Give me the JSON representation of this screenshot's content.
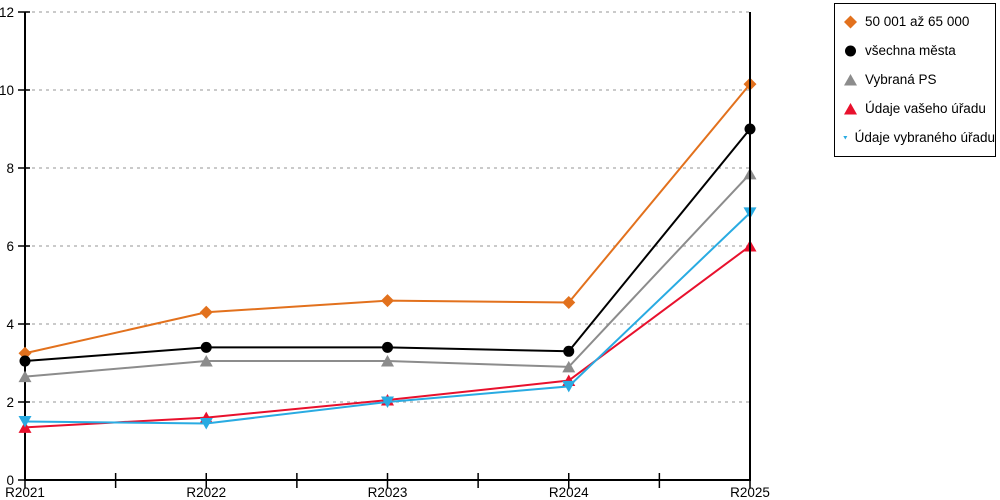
{
  "chart_data": {
    "type": "line",
    "title": "",
    "xlabel": "",
    "ylabel": "",
    "categories": [
      "R2021",
      "R2022",
      "R2023",
      "R2024",
      "R2025"
    ],
    "series": [
      {
        "name": "50 001 až 65 000",
        "marker": "diamond",
        "color": "#E2711D",
        "values": [
          3.25,
          4.3,
          4.6,
          4.55,
          10.15
        ]
      },
      {
        "name": "všechna města",
        "marker": "circle",
        "color": "#000000",
        "values": [
          3.05,
          3.4,
          3.4,
          3.3,
          9.0
        ]
      },
      {
        "name": "Vybraná PS",
        "marker": "triangle-up",
        "color": "#8C8C8C",
        "values": [
          2.65,
          3.05,
          3.05,
          2.9,
          7.85
        ]
      },
      {
        "name": "Údaje vašeho úřadu",
        "marker": "triangle-up",
        "color": "#E8112D",
        "values": [
          1.35,
          1.6,
          2.05,
          2.55,
          6.0
        ]
      },
      {
        "name": "Údaje vybraného úřadu",
        "marker": "triangle-down",
        "color": "#29ABE2",
        "values": [
          1.5,
          1.45,
          2.0,
          2.4,
          6.85
        ]
      }
    ],
    "ylim": [
      0,
      12
    ],
    "ytick_step": 2,
    "ytick_labels": [
      "0",
      "2",
      "4",
      "6",
      "8",
      "10",
      "12"
    ],
    "grid": "horizontal dotted, minor x ticks at half intervals",
    "grid_color": "#ABABAB",
    "axis_color": "#000000",
    "legend_position": "outside top-right, boxed"
  }
}
